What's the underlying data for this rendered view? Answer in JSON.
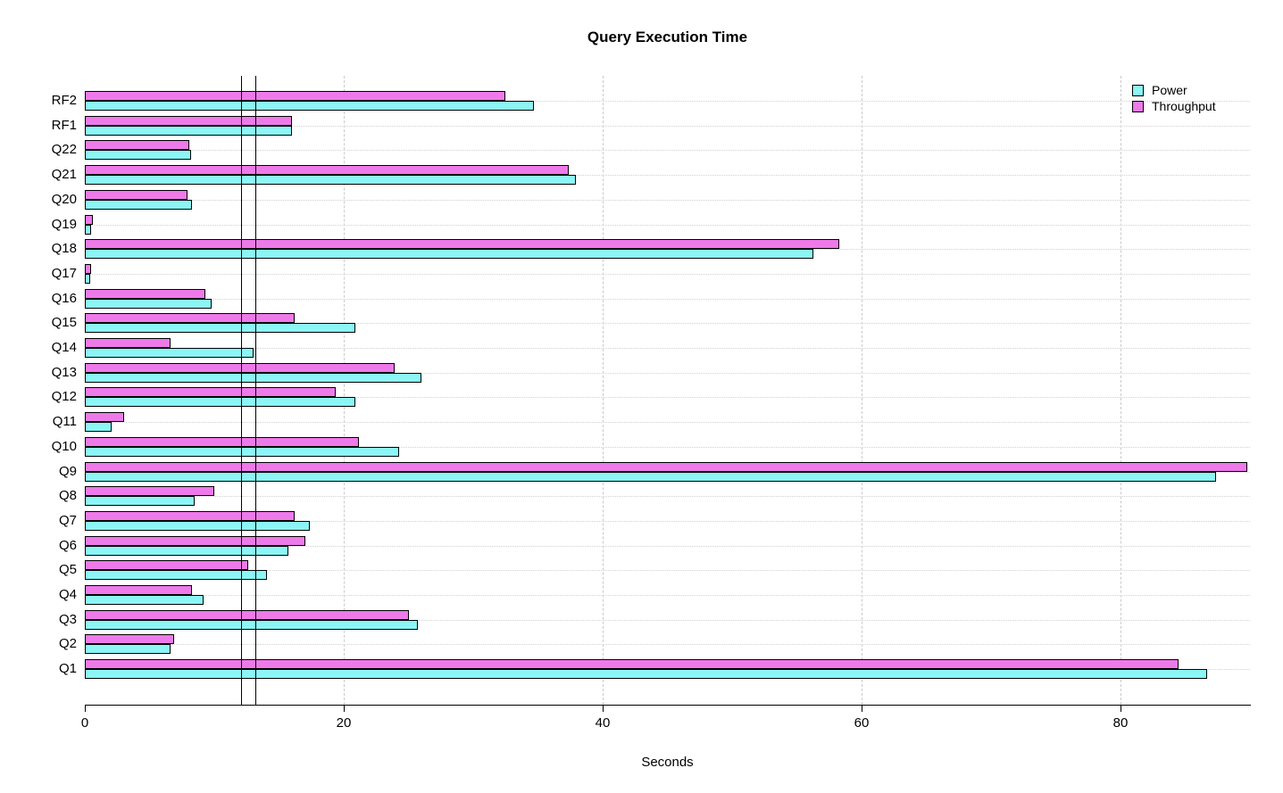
{
  "chart_data": {
    "type": "bar",
    "orientation": "horizontal",
    "title": "Query Execution Time",
    "xlabel": "Seconds",
    "xlim": [
      0,
      90
    ],
    "xticks": [
      0,
      20,
      40,
      60,
      80
    ],
    "categories": [
      "RF2",
      "RF1",
      "Q22",
      "Q21",
      "Q20",
      "Q19",
      "Q18",
      "Q17",
      "Q16",
      "Q15",
      "Q14",
      "Q13",
      "Q12",
      "Q11",
      "Q10",
      "Q9",
      "Q8",
      "Q7",
      "Q6",
      "Q5",
      "Q4",
      "Q3",
      "Q2",
      "Q1"
    ],
    "category_order": "top-to-bottom as displayed",
    "series": [
      {
        "name": "Power",
        "color": "#8CF5F5",
        "values": [
          34.7,
          16.0,
          8.2,
          37.9,
          8.3,
          0.5,
          56.3,
          0.4,
          9.8,
          20.9,
          13.0,
          26.0,
          20.9,
          2.1,
          24.3,
          87.4,
          8.5,
          17.4,
          15.7,
          14.1,
          9.2,
          25.7,
          6.6,
          86.7
        ]
      },
      {
        "name": "Throughput",
        "color": "#EE7AE9",
        "values": [
          32.5,
          16.0,
          8.1,
          37.4,
          7.9,
          0.6,
          58.3,
          0.5,
          9.3,
          16.2,
          6.6,
          23.9,
          19.4,
          3.0,
          21.2,
          89.8,
          10.0,
          16.2,
          17.0,
          12.6,
          8.3,
          25.0,
          6.9,
          84.5
        ]
      }
    ],
    "reference_lines_x": [
      12.1,
      13.2
    ],
    "legend": {
      "position": "top-right",
      "entries": [
        "Power",
        "Throughput"
      ]
    },
    "grid": {
      "vertical_dashed_at_ticks": true,
      "horizontal_dotted_per_category": true
    },
    "axis_color": "#000000",
    "bar_border_color": "#000000"
  }
}
